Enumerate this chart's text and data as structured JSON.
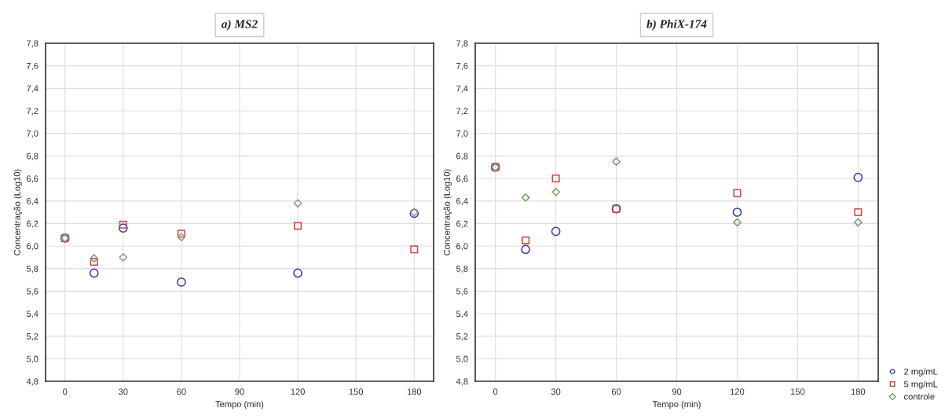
{
  "chart_data": [
    {
      "type": "scatter",
      "title": "a) MS2",
      "xlabel": "Tempo (min)",
      "ylabel": "Concentração (Log10)",
      "xlim": [
        -10,
        190
      ],
      "xticks": [
        0,
        30,
        60,
        90,
        120,
        150,
        180
      ],
      "ylim": [
        4.8,
        7.8
      ],
      "yticks": [
        {
          "value": 4.8,
          "label": "4,8"
        },
        {
          "value": 5.0,
          "label": "5,0"
        },
        {
          "value": 5.2,
          "label": "5,2"
        },
        {
          "value": 5.4,
          "label": "5,4"
        },
        {
          "value": 5.6,
          "label": "5,6"
        },
        {
          "value": 5.8,
          "label": "5,8"
        },
        {
          "value": 6.0,
          "label": "6,0"
        },
        {
          "value": 6.2,
          "label": "6,2"
        },
        {
          "value": 6.4,
          "label": "6,4"
        },
        {
          "value": 6.6,
          "label": "6,6"
        },
        {
          "value": 6.8,
          "label": "6,8"
        },
        {
          "value": 7.0,
          "label": "7,0"
        },
        {
          "value": 7.2,
          "label": "7,2"
        },
        {
          "value": 7.4,
          "label": "7,4"
        },
        {
          "value": 7.6,
          "label": "7,6"
        },
        {
          "value": 7.8,
          "label": "7,8"
        }
      ],
      "x": [
        0,
        15,
        30,
        60,
        120,
        180
      ],
      "grid": true,
      "series": [
        {
          "color": "#3a3aa8",
          "marker": "circle",
          "values": [
            6.07,
            5.76,
            6.16,
            5.68,
            5.76,
            6.29
          ]
        },
        {
          "color": "#cc4444",
          "marker": "square",
          "values": [
            6.07,
            5.86,
            6.19,
            6.11,
            6.18,
            5.97
          ]
        },
        {
          "color": "#8a9a88",
          "marker": "diamond",
          "values": [
            6.07,
            5.89,
            5.9,
            6.08,
            6.38,
            6.3
          ]
        }
      ]
    },
    {
      "type": "scatter",
      "title": "b) PhiX-174",
      "xlabel": "Tempo (min)",
      "ylabel": "Concentração (Log10)",
      "xlim": [
        -10,
        190
      ],
      "xticks": [
        0,
        30,
        60,
        90,
        120,
        150,
        180
      ],
      "ylim": [
        4.8,
        7.8
      ],
      "yticks": [
        {
          "value": 4.8,
          "label": "4,8"
        },
        {
          "value": 5.0,
          "label": "5,0"
        },
        {
          "value": 5.2,
          "label": "5,2"
        },
        {
          "value": 5.4,
          "label": "5,4"
        },
        {
          "value": 5.6,
          "label": "5,6"
        },
        {
          "value": 5.8,
          "label": "5,8"
        },
        {
          "value": 6.0,
          "label": "6,0"
        },
        {
          "value": 6.2,
          "label": "6,2"
        },
        {
          "value": 6.4,
          "label": "6,4"
        },
        {
          "value": 6.6,
          "label": "6,6"
        },
        {
          "value": 6.8,
          "label": "6,8"
        },
        {
          "value": 7.0,
          "label": "7,0"
        },
        {
          "value": 7.2,
          "label": "7,2"
        },
        {
          "value": 7.4,
          "label": "7,4"
        },
        {
          "value": 7.6,
          "label": "7,6"
        },
        {
          "value": 7.8,
          "label": "7,8"
        }
      ],
      "x": [
        0,
        15,
        30,
        60,
        120,
        180
      ],
      "grid": true,
      "legend": "bottom right",
      "series": [
        {
          "name": "2 mg/mL",
          "color": "#3a3aa8",
          "marker": "circle",
          "values": [
            6.7,
            5.97,
            6.13,
            6.33,
            6.3,
            6.61
          ]
        },
        {
          "name": "5 mg/mL",
          "color": "#cc4444",
          "marker": "square",
          "values": [
            6.7,
            6.05,
            6.6,
            6.33,
            6.47,
            6.3
          ]
        },
        {
          "name": "controle",
          "color": "#7aa070",
          "marker": "diamond",
          "values": [
            6.7,
            6.43,
            6.48,
            6.75,
            6.21,
            6.21
          ]
        }
      ]
    }
  ]
}
